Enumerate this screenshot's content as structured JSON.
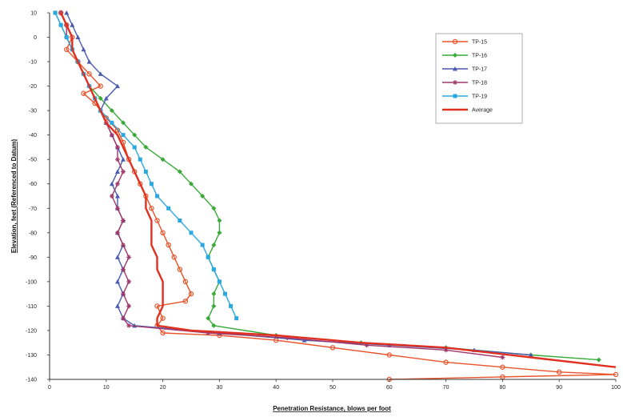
{
  "chart_data": {
    "type": "line",
    "xlabel": "Penetration Resistance, blows per foot",
    "ylabel": "Elevation, feet (Referenced to Datum)",
    "xlim": [
      0,
      100
    ],
    "ylim": [
      -140,
      10
    ],
    "x_ticks": [
      "0",
      "10",
      "20",
      "30",
      "40",
      "50",
      "60",
      "70",
      "80",
      "90",
      "100"
    ],
    "y_ticks": [
      "10",
      "0",
      "-10",
      "-20",
      "-30",
      "-40",
      "-50",
      "-60",
      "-70",
      "-80",
      "-90",
      "-100",
      "-110",
      "-120",
      "-130",
      "-140"
    ],
    "legend_position": "top-right",
    "grid": false,
    "series": [
      {
        "name": "TP-15",
        "color": "#e8532a",
        "marker": "circle",
        "points": [
          [
            2,
            10
          ],
          [
            3,
            5
          ],
          [
            4,
            0
          ],
          [
            3,
            -5
          ],
          [
            5,
            -10
          ],
          [
            7,
            -15
          ],
          [
            9,
            -20
          ],
          [
            6,
            -23
          ],
          [
            8,
            -27
          ],
          [
            10,
            -33
          ],
          [
            12,
            -38
          ],
          [
            13,
            -43
          ],
          [
            14,
            -50
          ],
          [
            15,
            -55
          ],
          [
            16,
            -60
          ],
          [
            17,
            -65
          ],
          [
            18,
            -70
          ],
          [
            19,
            -75
          ],
          [
            20,
            -80
          ],
          [
            21,
            -85
          ],
          [
            22,
            -90
          ],
          [
            23,
            -95
          ],
          [
            24,
            -100
          ],
          [
            25,
            -105
          ],
          [
            24,
            -108
          ],
          [
            19,
            -110
          ],
          [
            20,
            -115
          ],
          [
            19,
            -118
          ],
          [
            20,
            -121
          ],
          [
            30,
            -122
          ],
          [
            40,
            -124
          ],
          [
            50,
            -127
          ],
          [
            60,
            -130
          ],
          [
            70,
            -133
          ],
          [
            80,
            -135
          ],
          [
            90,
            -137
          ],
          [
            100,
            -138
          ],
          [
            80,
            -139
          ],
          [
            60,
            -140
          ]
        ]
      },
      {
        "name": "TP-16",
        "color": "#3aaa3a",
        "marker": "diamond",
        "points": [
          [
            1,
            10
          ],
          [
            2,
            5
          ],
          [
            3,
            0
          ],
          [
            4,
            -5
          ],
          [
            5,
            -10
          ],
          [
            6,
            -15
          ],
          [
            7,
            -20
          ],
          [
            9,
            -25
          ],
          [
            11,
            -30
          ],
          [
            13,
            -35
          ],
          [
            15,
            -40
          ],
          [
            17,
            -45
          ],
          [
            20,
            -50
          ],
          [
            23,
            -55
          ],
          [
            25,
            -60
          ],
          [
            27,
            -65
          ],
          [
            29,
            -70
          ],
          [
            30,
            -75
          ],
          [
            30,
            -80
          ],
          [
            29,
            -85
          ],
          [
            28,
            -90
          ],
          [
            29,
            -95
          ],
          [
            30,
            -100
          ],
          [
            29,
            -105
          ],
          [
            29,
            -110
          ],
          [
            28,
            -115
          ],
          [
            29,
            -118
          ],
          [
            40,
            -122
          ],
          [
            55,
            -125
          ],
          [
            70,
            -127
          ],
          [
            85,
            -130
          ],
          [
            97,
            -132
          ]
        ]
      },
      {
        "name": "TP-17",
        "color": "#4a5bb0",
        "marker": "triangle",
        "points": [
          [
            3,
            10
          ],
          [
            4,
            5
          ],
          [
            5,
            0
          ],
          [
            6,
            -5
          ],
          [
            7,
            -10
          ],
          [
            9,
            -15
          ],
          [
            12,
            -20
          ],
          [
            10,
            -25
          ],
          [
            9,
            -30
          ],
          [
            10,
            -35
          ],
          [
            11,
            -40
          ],
          [
            12,
            -45
          ],
          [
            13,
            -50
          ],
          [
            12,
            -55
          ],
          [
            11,
            -60
          ],
          [
            12,
            -65
          ],
          [
            12,
            -70
          ],
          [
            13,
            -75
          ],
          [
            12,
            -80
          ],
          [
            13,
            -85
          ],
          [
            12,
            -90
          ],
          [
            13,
            -95
          ],
          [
            12,
            -100
          ],
          [
            13,
            -105
          ],
          [
            12,
            -110
          ],
          [
            13,
            -115
          ],
          [
            15,
            -118
          ],
          [
            30,
            -121
          ],
          [
            45,
            -124
          ],
          [
            60,
            -126
          ],
          [
            75,
            -128
          ],
          [
            85,
            -130
          ]
        ]
      },
      {
        "name": "TP-18",
        "color": "#a0386a",
        "marker": "star",
        "points": [
          [
            2,
            10
          ],
          [
            3,
            5
          ],
          [
            3,
            0
          ],
          [
            4,
            -5
          ],
          [
            5,
            -10
          ],
          [
            6,
            -15
          ],
          [
            7,
            -20
          ],
          [
            8,
            -25
          ],
          [
            9,
            -30
          ],
          [
            10,
            -35
          ],
          [
            11,
            -40
          ],
          [
            12,
            -45
          ],
          [
            12,
            -50
          ],
          [
            13,
            -55
          ],
          [
            12,
            -60
          ],
          [
            11,
            -65
          ],
          [
            12,
            -70
          ],
          [
            13,
            -75
          ],
          [
            12,
            -80
          ],
          [
            13,
            -85
          ],
          [
            14,
            -90
          ],
          [
            13,
            -95
          ],
          [
            14,
            -100
          ],
          [
            13,
            -105
          ],
          [
            14,
            -110
          ],
          [
            13,
            -115
          ],
          [
            14,
            -118
          ],
          [
            28,
            -121
          ],
          [
            42,
            -123
          ],
          [
            56,
            -126
          ],
          [
            70,
            -128
          ],
          [
            80,
            -131
          ]
        ]
      },
      {
        "name": "TP-19",
        "color": "#2aa8e0",
        "marker": "square",
        "points": [
          [
            1,
            10
          ],
          [
            2,
            5
          ],
          [
            3,
            0
          ],
          [
            4,
            -5
          ],
          [
            5,
            -10
          ],
          [
            6,
            -15
          ],
          [
            7,
            -20
          ],
          [
            8,
            -25
          ],
          [
            9,
            -30
          ],
          [
            11,
            -35
          ],
          [
            13,
            -40
          ],
          [
            15,
            -45
          ],
          [
            16,
            -50
          ],
          [
            17,
            -55
          ],
          [
            18,
            -60
          ],
          [
            19,
            -65
          ],
          [
            21,
            -70
          ],
          [
            23,
            -75
          ],
          [
            25,
            -80
          ],
          [
            27,
            -85
          ],
          [
            28,
            -90
          ],
          [
            29,
            -95
          ],
          [
            30,
            -100
          ],
          [
            31,
            -105
          ],
          [
            32,
            -110
          ],
          [
            33,
            -115
          ]
        ]
      },
      {
        "name": "Average",
        "color": "#e03020",
        "marker": "none",
        "points": [
          [
            2,
            10
          ],
          [
            3,
            5
          ],
          [
            4,
            0
          ],
          [
            4,
            -5
          ],
          [
            5,
            -10
          ],
          [
            6,
            -15
          ],
          [
            7,
            -20
          ],
          [
            8,
            -25
          ],
          [
            9,
            -30
          ],
          [
            10,
            -35
          ],
          [
            12,
            -40
          ],
          [
            13,
            -45
          ],
          [
            14,
            -50
          ],
          [
            15,
            -55
          ],
          [
            16,
            -60
          ],
          [
            17,
            -65
          ],
          [
            17,
            -70
          ],
          [
            18,
            -75
          ],
          [
            18,
            -80
          ],
          [
            18,
            -85
          ],
          [
            19,
            -90
          ],
          [
            19,
            -95
          ],
          [
            20,
            -100
          ],
          [
            20,
            -105
          ],
          [
            20,
            -110
          ],
          [
            19,
            -115
          ],
          [
            19,
            -118
          ],
          [
            25,
            -120
          ],
          [
            40,
            -122
          ],
          [
            55,
            -125
          ],
          [
            70,
            -127
          ],
          [
            85,
            -131
          ],
          [
            100,
            -135
          ]
        ]
      }
    ]
  }
}
